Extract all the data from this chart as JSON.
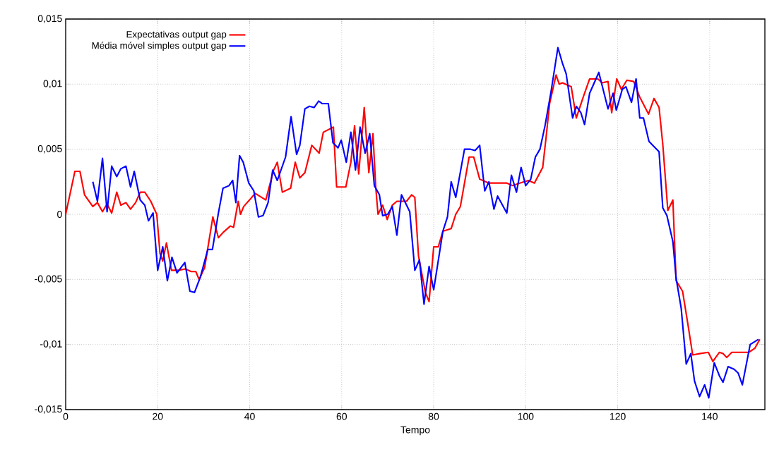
{
  "chart_data": {
    "type": "line",
    "xlabel": "Tempo",
    "xlim": [
      0,
      152
    ],
    "ylim": [
      -0.015,
      0.015
    ],
    "xticks": [
      0,
      20,
      40,
      60,
      80,
      100,
      120,
      140
    ],
    "yticks": [
      {
        "value": -0.015,
        "label": "-0,015"
      },
      {
        "value": -0.01,
        "label": "-0,01"
      },
      {
        "value": -0.005,
        "label": "-0,005"
      },
      {
        "value": 0,
        "label": "0"
      },
      {
        "value": 0.005,
        "label": "0,005"
      },
      {
        "value": 0.01,
        "label": "0,01"
      },
      {
        "value": 0.015,
        "label": "0,015"
      }
    ],
    "grid": true,
    "legend": "top left",
    "line_style": "solid",
    "series": [
      {
        "name": "Expectativas output gap",
        "color": "#ff0000",
        "x": [
          0,
          2,
          3.1,
          4.1,
          5.1,
          5.9,
          6.9,
          8,
          9,
          10,
          11.1,
          12,
          13.1,
          14.1,
          15.2,
          16.2,
          17.2,
          18.5,
          19.8,
          20.5,
          21.1,
          21.9,
          23,
          24.5,
          26,
          27.3,
          28.3,
          29,
          30.2,
          32,
          33.2,
          34.2,
          35.8,
          36.5,
          37.5,
          38,
          38.7,
          41.2,
          43.5,
          45.2,
          46,
          47.1,
          48.9,
          49.9,
          50.9,
          52,
          53.5,
          55.1,
          56,
          58.2,
          58.9,
          60.9,
          62,
          62.8,
          63.7,
          64.9,
          65.9,
          66.8,
          67.4,
          67.9,
          68.9,
          69.9,
          71,
          72,
          74.1,
          75.2,
          75.9,
          76.7,
          78.2,
          79,
          80,
          81,
          82,
          83.8,
          84.8,
          85.8,
          87.7,
          88.7,
          90,
          92,
          95.9,
          97.2,
          98.7,
          100.6,
          101.9,
          103.7,
          104.4,
          105.2,
          106.6,
          107.3,
          108,
          109.9,
          111,
          112.5,
          113.9,
          115.7,
          116.6,
          117.9,
          118.7,
          119.8,
          120.8,
          122,
          123.5,
          124.8,
          126.7,
          127.9,
          129,
          129.8,
          130.9,
          132,
          132.7,
          134.1,
          135.2,
          136.3,
          137.8,
          139.7,
          140.7,
          142.1,
          142.9,
          143.7,
          144.8,
          148.5,
          149.8,
          150.9
        ],
        "values": [
          0,
          0.0033,
          0.0033,
          0.0015,
          0.001,
          0.0006,
          0.0009,
          0.0002,
          0.0008,
          0.0001,
          0.0017,
          0.0007,
          0.0009,
          0.0004,
          0.0009,
          0.0017,
          0.0017,
          0.001,
          0,
          -0.003,
          -0.0036,
          -0.0022,
          -0.0043,
          -0.0043,
          -0.0042,
          -0.0044,
          -0.0044,
          -0.005,
          -0.0041,
          -0.0002,
          -0.0018,
          -0.0014,
          -0.0009,
          -0.001,
          0.001,
          0,
          0.0006,
          0.0016,
          0.0011,
          0.0034,
          0.004,
          0.0017,
          0.002,
          0.004,
          0.0028,
          0.0032,
          0.0053,
          0.0047,
          0.0063,
          0.0067,
          0.0021,
          0.0021,
          0.004,
          0.0068,
          0.0031,
          0.0082,
          0.0032,
          0.0062,
          0.0021,
          0,
          0.0007,
          -0.0004,
          0.0007,
          0.001,
          0.001,
          0.0015,
          0.0013,
          -0.0032,
          -0.006,
          -0.0067,
          -0.0025,
          -0.0025,
          -0.0013,
          -0.0011,
          0,
          0.0006,
          0.0044,
          0.0044,
          0.0027,
          0.0024,
          0.0024,
          0.0022,
          0.0024,
          0.0026,
          0.0024,
          0.0036,
          0.0058,
          0.0085,
          0.0107,
          0.01,
          0.0101,
          0.0098,
          0.0074,
          0.009,
          0.0104,
          0.0104,
          0.0101,
          0.0102,
          0.0078,
          0.0104,
          0.0096,
          0.0103,
          0.0102,
          0.009,
          0.0077,
          0.0089,
          0.0082,
          0.0054,
          0.0003,
          0.0011,
          -0.0051,
          -0.0059,
          -0.0083,
          -0.0108,
          -0.0107,
          -0.0106,
          -0.0113,
          -0.0106,
          -0.0107,
          -0.011,
          -0.0106,
          -0.0106,
          -0.0103,
          -0.0096
        ]
      },
      {
        "name": "Média móvel simples output gap",
        "color": "#0000ff",
        "x": [
          5.9,
          6.9,
          8,
          9,
          10,
          11.1,
          12,
          13.1,
          14.1,
          14.9,
          16.2,
          17.2,
          18,
          19,
          20,
          21.1,
          22.1,
          23.1,
          24.2,
          25.9,
          27,
          28,
          29.3,
          30.9,
          31.9,
          33.2,
          34.2,
          35.5,
          36.3,
          37,
          37.8,
          38.6,
          39.8,
          40.9,
          41.9,
          42.9,
          44,
          45,
          46,
          47.8,
          49,
          50.2,
          50.9,
          52,
          53,
          54,
          55,
          55.8,
          57.1,
          58.1,
          59.2,
          59.9,
          61,
          62,
          63,
          64,
          65.1,
          66.1,
          67.1,
          68.2,
          68.9,
          70,
          71,
          72,
          73,
          74.8,
          75.9,
          76.9,
          77.9,
          79,
          80,
          82,
          83,
          83.8,
          84.8,
          86.7,
          88,
          89,
          90,
          91.1,
          92,
          93.1,
          93.9,
          95.9,
          96.9,
          98,
          99,
          100,
          101.1,
          102.1,
          103.1,
          104.2,
          105.5,
          107,
          108,
          108.8,
          110.2,
          111,
          112,
          112.8,
          113.9,
          115.9,
          117.9,
          119,
          119.7,
          121,
          121.8,
          123,
          124,
          124.8,
          125.6,
          126.8,
          127.9,
          129,
          129.8,
          130.7,
          132,
          132.7,
          133.8,
          134.9,
          135.9,
          136.7,
          137.8,
          138.9,
          139.8,
          141,
          142.1,
          142.9,
          144,
          145.3,
          146.2,
          147.1,
          148.8,
          150.6
        ],
        "values": [
          0.0025,
          0.001,
          0.0043,
          0.0002,
          0.0037,
          0.0029,
          0.0035,
          0.0037,
          0.0021,
          0.0033,
          0.0011,
          0.0007,
          -0.0005,
          0.0001,
          -0.0043,
          -0.0025,
          -0.0051,
          -0.0033,
          -0.0045,
          -0.0037,
          -0.0059,
          -0.006,
          -0.0048,
          -0.0027,
          -0.0027,
          0.0001,
          0.002,
          0.0022,
          0.0026,
          0.0009,
          0.0045,
          0.004,
          0.0024,
          0.0018,
          -0.0002,
          -0.0001,
          0.0009,
          0.0034,
          0.0026,
          0.0044,
          0.0075,
          0.0046,
          0.0053,
          0.0081,
          0.0083,
          0.0082,
          0.0087,
          0.0085,
          0.0085,
          0.0055,
          0.0051,
          0.0057,
          0.004,
          0.0063,
          0.0034,
          0.0067,
          0.0047,
          0.0062,
          0.0022,
          0.0015,
          -0.0001,
          0,
          0.0006,
          -0.0016,
          0.0015,
          0.0002,
          -0.0043,
          -0.0035,
          -0.0069,
          -0.004,
          -0.0058,
          -0.0013,
          -0.0002,
          0.0025,
          0.0013,
          0.005,
          0.005,
          0.0049,
          0.0053,
          0.0018,
          0.0025,
          0.0004,
          0.0014,
          0.0001,
          0.003,
          0.0017,
          0.0036,
          0.0022,
          0.0027,
          0.0044,
          0.005,
          0.0068,
          0.0094,
          0.0128,
          0.0116,
          0.0108,
          0.0074,
          0.0083,
          0.0078,
          0.0069,
          0.0093,
          0.0109,
          0.0081,
          0.0093,
          0.008,
          0.0096,
          0.0098,
          0.0086,
          0.0104,
          0.0074,
          0.0074,
          0.0056,
          0.0052,
          0.0048,
          0.0005,
          -0.0001,
          -0.0021,
          -0.0049,
          -0.0072,
          -0.0115,
          -0.0107,
          -0.0128,
          -0.014,
          -0.0131,
          -0.0141,
          -0.0114,
          -0.0124,
          -0.0129,
          -0.0117,
          -0.0119,
          -0.0122,
          -0.0131,
          -0.01,
          -0.0096
        ]
      }
    ]
  }
}
